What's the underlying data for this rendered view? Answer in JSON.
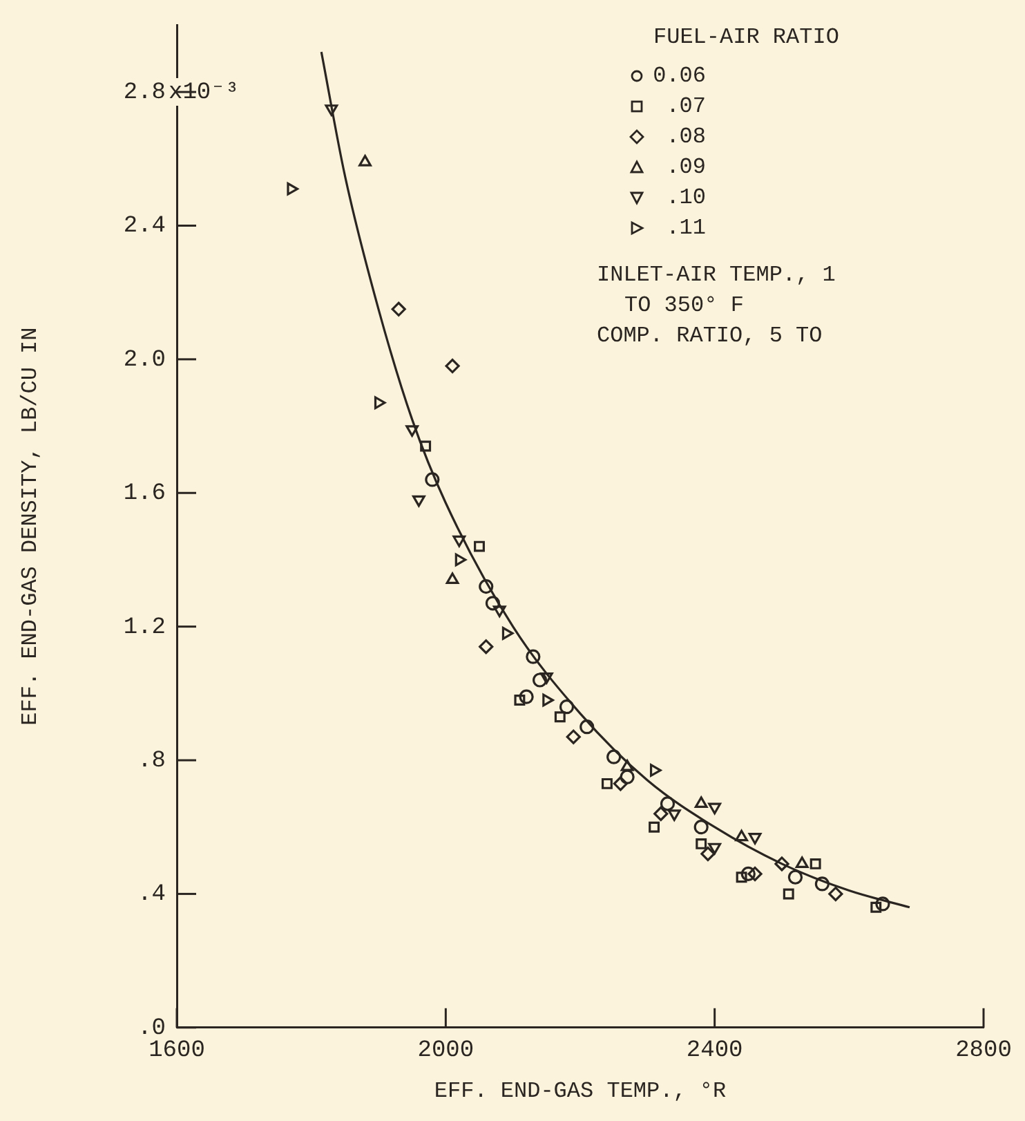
{
  "chart_data": {
    "type": "scatter",
    "xlabel": "EFF. END-GAS TEMP., °R",
    "ylabel": "EFF. END-GAS DENSITY, LB/CU IN",
    "legend_title": "FUEL-AIR RATIO",
    "legend": "top right",
    "grid": false,
    "xlim": [
      1600,
      2800
    ],
    "xticks": [
      1600,
      2000,
      2400,
      2800
    ],
    "ylim": [
      0,
      3.0
    ],
    "yticks": [
      {
        "value": 0,
        "label": ".0"
      },
      {
        "value": 0.4,
        "label": ".4"
      },
      {
        "value": 0.8,
        "label": ".8"
      },
      {
        "value": 1.2,
        "label": "1.2"
      },
      {
        "value": 1.6,
        "label": "1.6"
      },
      {
        "value": 2.0,
        "label": "2.0"
      },
      {
        "value": 2.4,
        "label": "2.4"
      },
      {
        "value": 2.8,
        "label": "2.8"
      }
    ],
    "annotations": [
      "x10⁻³",
      "INLET-AIR TEMP., 1",
      "TO 350° F",
      "COMP. RATIO, 5 TO"
    ],
    "series": [
      {
        "name": "0.06",
        "color": "#2a2520",
        "marker": "circle",
        "x": [
          1980,
          2060,
          2070,
          2130,
          2140,
          2120,
          2180,
          2210,
          2250,
          2270,
          2330,
          2380,
          2450,
          2520,
          2560,
          2650
        ],
        "values": [
          1.64,
          1.32,
          1.27,
          1.11,
          1.04,
          0.99,
          0.96,
          0.9,
          0.81,
          0.75,
          0.67,
          0.6,
          0.46,
          0.45,
          0.43,
          0.37
        ]
      },
      {
        "name": ".07",
        "color": "#2a2520",
        "marker": "square",
        "x": [
          1970,
          2050,
          2110,
          2170,
          2240,
          2310,
          2380,
          2440,
          2550,
          2510,
          2640
        ],
        "values": [
          1.74,
          1.44,
          0.98,
          0.93,
          0.73,
          0.6,
          0.55,
          0.45,
          0.49,
          0.4,
          0.36
        ]
      },
      {
        "name": ".08",
        "color": "#2a2520",
        "marker": "diamond",
        "x": [
          1930,
          2010,
          2060,
          2190,
          2260,
          2320,
          2390,
          2460,
          2500,
          2580
        ],
        "values": [
          2.15,
          1.98,
          1.14,
          0.87,
          0.73,
          0.64,
          0.52,
          0.46,
          0.49,
          0.4
        ]
      },
      {
        "name": ".09",
        "color": "#2a2520",
        "marker": "triangle",
        "x": [
          1880,
          2010,
          2270,
          2380,
          2440,
          2530
        ],
        "values": [
          2.59,
          1.34,
          0.78,
          0.67,
          0.57,
          0.49
        ]
      },
      {
        "name": ".10",
        "color": "#2a2520",
        "marker": "triangle-down",
        "x": [
          1830,
          1950,
          1960,
          2020,
          2080,
          2150,
          2340,
          2400,
          2400,
          2460
        ],
        "values": [
          2.75,
          1.79,
          1.58,
          1.46,
          1.25,
          1.05,
          0.64,
          0.66,
          0.54,
          0.57
        ]
      },
      {
        "name": ".11",
        "color": "#2a2520",
        "marker": "triangle-right",
        "x": [
          1770,
          1900,
          2020,
          2090,
          2150,
          2310
        ],
        "values": [
          2.51,
          1.87,
          1.4,
          1.18,
          0.98,
          0.77
        ]
      },
      {
        "type": "line",
        "color": "#2a2520",
        "marker": "none",
        "line_style": "solid",
        "x": [
          1815,
          1850,
          1900,
          1950,
          2000,
          2100,
          2200,
          2300,
          2400,
          2500,
          2600,
          2690
        ],
        "values": [
          2.92,
          2.55,
          2.15,
          1.82,
          1.57,
          1.2,
          0.94,
          0.74,
          0.6,
          0.49,
          0.41,
          0.36
        ]
      }
    ]
  }
}
